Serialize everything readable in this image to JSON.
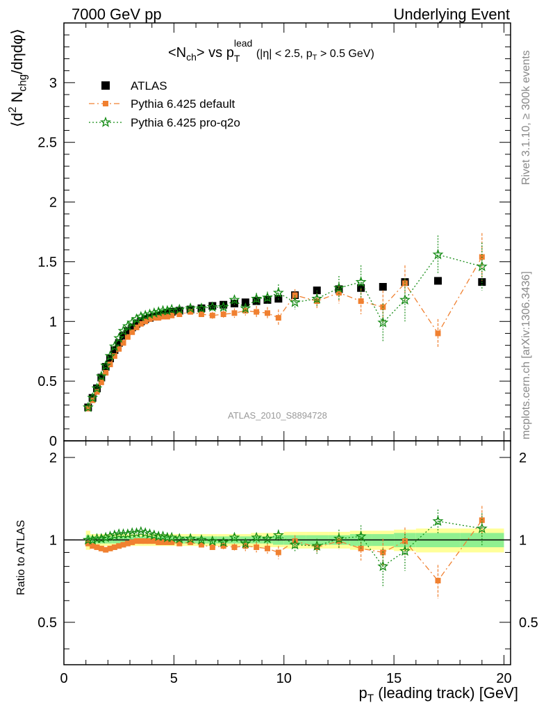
{
  "header": {
    "left": "7000 GeV pp",
    "right": "Underlying Event"
  },
  "side_text": {
    "rivet": "Rivet 3.1.10, ≥ 300k events",
    "mcplots": "mcplots.cern.ch [arXiv:1306.3436]"
  },
  "watermark": "ATLAS_2010_S8894728",
  "top_title": {
    "main": "<N",
    "main_sub": "ch",
    "vs": "> vs p",
    "vs_sup": "lead",
    "vs_sub": "T",
    "cuts": "(|η| < 2.5, p",
    "cuts_sub": "T",
    "cuts_end": " > 0.5 GeV)"
  },
  "ylabel_top": {
    "a": "⟨d",
    "a_sup": "2",
    "b": " N",
    "b_sub": "chg",
    "c": "/dηdφ⟩"
  },
  "ylabel_bottom": "Ratio to ATLAS",
  "xlabel": {
    "p": "p",
    "p_sub": "T",
    "rest": " (leading track) [GeV]"
  },
  "colors": {
    "atlas": "#000000",
    "default": "#f08030",
    "proq2o": "#138a13",
    "band_inner": "#90f090",
    "band_outer": "#ffff99",
    "watermark": "#999999"
  },
  "chart_data": [
    {
      "type": "scatter",
      "panel": "main",
      "xlim": [
        0,
        20.3
      ],
      "ylim": [
        0,
        3.5
      ],
      "xticks": [
        0,
        5,
        10,
        15,
        20
      ],
      "yticks": [
        0,
        0.5,
        1,
        1.5,
        2,
        2.5,
        3
      ],
      "ytick_labels": [
        "0",
        "0.5",
        "1",
        "1.5",
        "2",
        "2.5",
        "3"
      ],
      "legend": {
        "position": "top-left",
        "entries": [
          "ATLAS",
          "Pythia 6.425 default",
          "Pythia 6.425 pro-q2o"
        ]
      },
      "x": [
        1.1,
        1.3,
        1.5,
        1.7,
        1.9,
        2.1,
        2.3,
        2.5,
        2.7,
        2.9,
        3.1,
        3.3,
        3.5,
        3.7,
        3.9,
        4.1,
        4.3,
        4.5,
        4.7,
        4.9,
        5.25,
        5.75,
        6.25,
        6.75,
        7.25,
        7.75,
        8.25,
        8.75,
        9.25,
        9.75,
        10.5,
        11.5,
        12.5,
        13.5,
        14.5,
        15.5,
        17.0,
        19.0
      ],
      "series": [
        {
          "name": "ATLAS",
          "marker": "square",
          "values": [
            0.28,
            0.36,
            0.44,
            0.53,
            0.62,
            0.69,
            0.76,
            0.82,
            0.88,
            0.92,
            0.95,
            0.98,
            1.0,
            1.02,
            1.03,
            1.04,
            1.05,
            1.06,
            1.07,
            1.08,
            1.09,
            1.1,
            1.11,
            1.13,
            1.14,
            1.15,
            1.16,
            1.17,
            1.18,
            1.19,
            1.22,
            1.26,
            1.27,
            1.28,
            1.29,
            1.33,
            1.34,
            1.33
          ],
          "errors": [
            0.01,
            0.01,
            0.01,
            0.01,
            0.01,
            0.01,
            0.01,
            0.01,
            0.01,
            0.01,
            0.01,
            0.01,
            0.01,
            0.01,
            0.01,
            0.01,
            0.01,
            0.01,
            0.01,
            0.01,
            0.01,
            0.01,
            0.01,
            0.01,
            0.01,
            0.01,
            0.01,
            0.01,
            0.01,
            0.01,
            0.01,
            0.01,
            0.01,
            0.02,
            0.02,
            0.02,
            0.02,
            0.02
          ]
        },
        {
          "name": "Pythia 6.425 default",
          "marker": "square-small",
          "line": "dashdot",
          "values": [
            0.27,
            0.34,
            0.41,
            0.49,
            0.57,
            0.64,
            0.71,
            0.77,
            0.82,
            0.87,
            0.91,
            0.95,
            0.98,
            1.0,
            1.02,
            1.03,
            1.03,
            1.04,
            1.04,
            1.05,
            1.06,
            1.08,
            1.06,
            1.05,
            1.06,
            1.07,
            1.09,
            1.08,
            1.07,
            1.03,
            1.22,
            1.17,
            1.24,
            1.17,
            1.12,
            1.32,
            0.9,
            1.54
          ],
          "errors": [
            0.01,
            0.01,
            0.01,
            0.01,
            0.01,
            0.01,
            0.01,
            0.01,
            0.01,
            0.01,
            0.01,
            0.01,
            0.01,
            0.01,
            0.01,
            0.01,
            0.01,
            0.01,
            0.01,
            0.01,
            0.01,
            0.02,
            0.02,
            0.03,
            0.03,
            0.04,
            0.04,
            0.05,
            0.05,
            0.07,
            0.05,
            0.07,
            0.09,
            0.11,
            0.14,
            0.15,
            0.12,
            0.2
          ]
        },
        {
          "name": "Pythia 6.425 pro-q2o",
          "marker": "star",
          "line": "dotted",
          "values": [
            0.28,
            0.36,
            0.44,
            0.54,
            0.63,
            0.71,
            0.79,
            0.86,
            0.92,
            0.96,
            0.99,
            1.02,
            1.04,
            1.05,
            1.06,
            1.07,
            1.08,
            1.09,
            1.09,
            1.1,
            1.1,
            1.11,
            1.11,
            1.12,
            1.12,
            1.18,
            1.11,
            1.19,
            1.2,
            1.24,
            1.16,
            1.19,
            1.28,
            1.33,
            0.99,
            1.18,
            1.56,
            1.46
          ],
          "errors": [
            0.01,
            0.01,
            0.01,
            0.01,
            0.01,
            0.01,
            0.01,
            0.01,
            0.01,
            0.01,
            0.01,
            0.01,
            0.01,
            0.01,
            0.01,
            0.01,
            0.01,
            0.01,
            0.01,
            0.01,
            0.01,
            0.02,
            0.02,
            0.03,
            0.03,
            0.04,
            0.04,
            0.05,
            0.05,
            0.07,
            0.06,
            0.07,
            0.1,
            0.14,
            0.16,
            0.18,
            0.16,
            0.2
          ]
        }
      ]
    },
    {
      "type": "scatter",
      "panel": "ratio",
      "ylabel": "Ratio to ATLAS",
      "xlim": [
        0,
        20.3
      ],
      "ylim": [
        0.35,
        2.3
      ],
      "ytick_labels": [
        "0.5",
        "1",
        "2"
      ],
      "xticks": [
        0,
        5,
        10,
        15,
        20
      ],
      "band_edges": [
        1.0,
        1.2,
        1.4,
        1.6,
        1.8,
        2.0,
        2.2,
        2.4,
        2.6,
        2.8,
        3.0,
        3.2,
        3.4,
        3.6,
        3.8,
        4.0,
        4.2,
        4.4,
        4.6,
        4.8,
        5.0,
        5.5,
        6.0,
        6.5,
        7.0,
        7.5,
        8.0,
        8.5,
        9.0,
        9.5,
        10.0,
        11.0,
        12.0,
        13.0,
        14.0,
        15.0,
        16.0,
        18.0,
        20.0
      ],
      "band_inner_halfwidth": [
        0.04,
        0.03,
        0.03,
        0.03,
        0.03,
        0.03,
        0.03,
        0.03,
        0.03,
        0.03,
        0.03,
        0.03,
        0.03,
        0.03,
        0.03,
        0.03,
        0.03,
        0.03,
        0.03,
        0.03,
        0.03,
        0.03,
        0.03,
        0.03,
        0.03,
        0.03,
        0.03,
        0.03,
        0.03,
        0.04,
        0.04,
        0.04,
        0.04,
        0.05,
        0.05,
        0.06,
        0.06,
        0.06
      ],
      "band_outer_halfwidth": [
        0.08,
        0.05,
        0.05,
        0.05,
        0.05,
        0.05,
        0.05,
        0.05,
        0.05,
        0.05,
        0.05,
        0.05,
        0.05,
        0.05,
        0.05,
        0.05,
        0.05,
        0.05,
        0.05,
        0.05,
        0.05,
        0.05,
        0.05,
        0.05,
        0.05,
        0.05,
        0.05,
        0.06,
        0.06,
        0.06,
        0.07,
        0.07,
        0.07,
        0.08,
        0.08,
        0.09,
        0.1,
        0.1
      ],
      "x": [
        1.1,
        1.3,
        1.5,
        1.7,
        1.9,
        2.1,
        2.3,
        2.5,
        2.7,
        2.9,
        3.1,
        3.3,
        3.5,
        3.7,
        3.9,
        4.1,
        4.3,
        4.5,
        4.7,
        4.9,
        5.25,
        5.75,
        6.25,
        6.75,
        7.25,
        7.75,
        8.25,
        8.75,
        9.25,
        9.75,
        10.5,
        11.5,
        12.5,
        13.5,
        14.5,
        15.5,
        17.0,
        19.0
      ],
      "series": [
        {
          "name": "Pythia 6.425 default",
          "marker": "square-small",
          "line": "dashdot",
          "values": [
            0.97,
            0.95,
            0.94,
            0.93,
            0.92,
            0.93,
            0.94,
            0.95,
            0.96,
            0.97,
            0.98,
            0.99,
            0.99,
            0.99,
            0.99,
            0.99,
            0.98,
            0.98,
            0.98,
            0.98,
            0.97,
            0.98,
            0.96,
            0.94,
            0.95,
            0.94,
            0.95,
            0.94,
            0.93,
            0.9,
            0.99,
            0.94,
            0.99,
            0.93,
            0.9,
            0.99,
            0.71,
            1.18
          ],
          "errors": [
            0.01,
            0.01,
            0.01,
            0.01,
            0.01,
            0.01,
            0.01,
            0.01,
            0.01,
            0.01,
            0.01,
            0.01,
            0.01,
            0.01,
            0.01,
            0.01,
            0.01,
            0.01,
            0.01,
            0.01,
            0.01,
            0.02,
            0.02,
            0.02,
            0.03,
            0.03,
            0.04,
            0.04,
            0.04,
            0.05,
            0.05,
            0.05,
            0.07,
            0.09,
            0.11,
            0.12,
            0.1,
            0.15
          ]
        },
        {
          "name": "Pythia 6.425 pro-q2o",
          "marker": "star",
          "line": "dotted",
          "values": [
            1.0,
            1.0,
            1.01,
            1.01,
            1.02,
            1.03,
            1.04,
            1.05,
            1.05,
            1.05,
            1.06,
            1.06,
            1.07,
            1.06,
            1.05,
            1.04,
            1.03,
            1.03,
            1.02,
            1.02,
            1.01,
            1.01,
            1.0,
            0.99,
            0.98,
            1.02,
            0.97,
            1.02,
            1.01,
            1.04,
            0.96,
            0.95,
            1.01,
            1.03,
            0.8,
            0.91,
            1.17,
            1.1
          ],
          "errors": [
            0.01,
            0.01,
            0.01,
            0.01,
            0.01,
            0.01,
            0.01,
            0.01,
            0.01,
            0.01,
            0.01,
            0.01,
            0.01,
            0.01,
            0.01,
            0.01,
            0.01,
            0.01,
            0.01,
            0.01,
            0.01,
            0.02,
            0.02,
            0.02,
            0.03,
            0.03,
            0.04,
            0.04,
            0.04,
            0.05,
            0.05,
            0.06,
            0.08,
            0.1,
            0.13,
            0.14,
            0.12,
            0.15
          ]
        }
      ]
    }
  ]
}
